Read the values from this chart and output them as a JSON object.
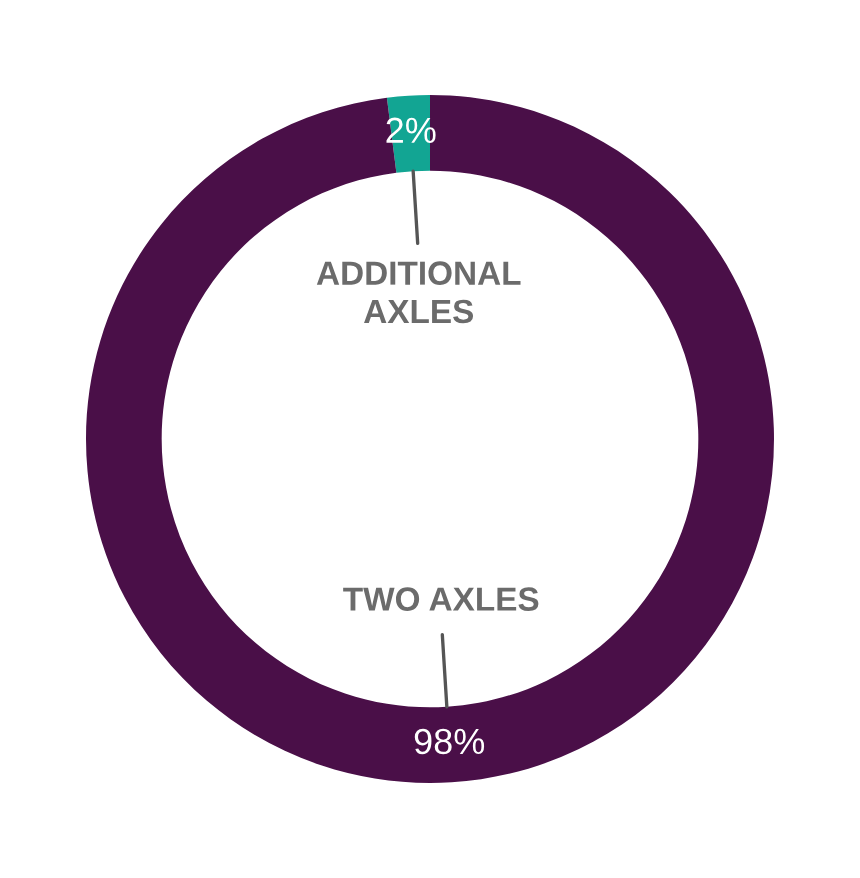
{
  "chart_data": {
    "type": "donut",
    "categories": [
      "ADDITIONAL\nAXLES",
      "TWO AXLES"
    ],
    "values": [
      2,
      98
    ],
    "colors": [
      "#12a593",
      "#4a0f48"
    ],
    "value_labels": [
      "2%",
      "98%"
    ]
  }
}
